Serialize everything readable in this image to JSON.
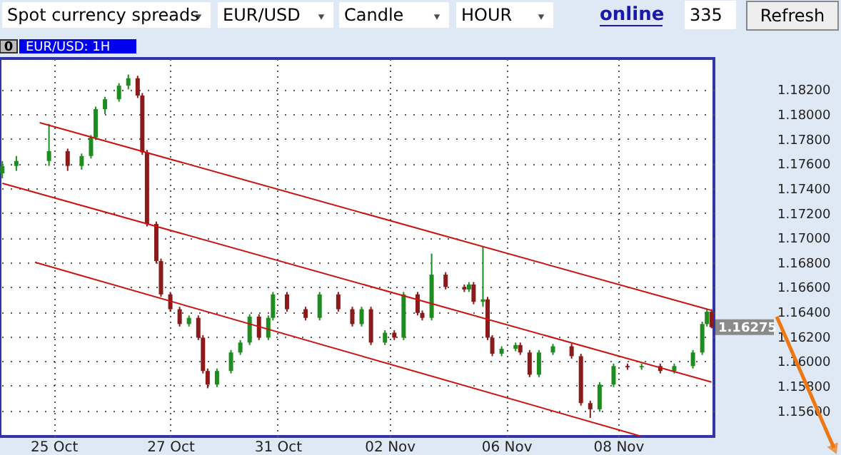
{
  "chart_data": {
    "type": "candlestick",
    "title": "EUR/USD: 1H",
    "categories": [
      null,
      null,
      null,
      null,
      null,
      null,
      null,
      null,
      null,
      null,
      null,
      "25 Oct",
      null,
      null,
      null,
      null,
      null,
      null,
      null,
      null,
      null,
      null,
      null,
      null,
      null,
      null,
      null,
      null,
      null,
      null,
      null,
      null,
      null,
      null,
      null,
      null,
      "27 Oct",
      null,
      null,
      null,
      null,
      null,
      null,
      null,
      null,
      null,
      null,
      null,
      null,
      null,
      null,
      null,
      null,
      null,
      null,
      null,
      null,
      null,
      null,
      "31 Oct",
      null,
      null,
      null,
      null,
      null,
      null,
      null,
      null,
      null,
      null,
      null,
      null,
      null,
      null,
      null,
      null,
      null,
      null,
      null,
      null,
      null,
      null,
      null,
      "02 Nov",
      null,
      null,
      null,
      null,
      null,
      null,
      null,
      null,
      null,
      null,
      null,
      null,
      null,
      null,
      null,
      null,
      null,
      null,
      null,
      null,
      null,
      null,
      null,
      null,
      "06 Nov",
      null,
      null,
      null,
      null,
      null,
      null,
      null,
      null,
      null,
      null,
      null,
      null,
      null,
      null,
      null,
      null,
      null,
      null,
      null,
      null,
      null,
      null,
      null,
      "08 Nov",
      null,
      null,
      null,
      null,
      null,
      null,
      null,
      null,
      null,
      null,
      null,
      null,
      null,
      null,
      null,
      null,
      null,
      null,
      null,
      null
    ],
    "ohlc": [
      [
        1.1752,
        1.1762,
        1.1748,
        1.1758
      ],
      null,
      null,
      [
        1.1758,
        1.1766,
        1.1754,
        1.1762
      ],
      null,
      null,
      null,
      null,
      null,
      null,
      [
        1.1762,
        1.1792,
        1.1758,
        1.177
      ],
      null,
      null,
      null,
      [
        1.177,
        1.1772,
        1.1754,
        1.1758
      ],
      null,
      null,
      [
        1.1758,
        1.1768,
        1.1755,
        1.1766
      ],
      null,
      [
        1.1766,
        1.1783,
        1.1764,
        1.1781
      ],
      [
        1.1781,
        1.1806,
        1.1779,
        1.1804
      ],
      null,
      [
        1.1804,
        1.1814,
        1.18,
        1.1812
      ],
      null,
      null,
      [
        1.1812,
        1.1825,
        1.181,
        1.1823
      ],
      null,
      [
        1.1823,
        1.1832,
        1.182,
        1.1829
      ],
      null,
      [
        1.1829,
        1.1831,
        1.1813,
        1.1815
      ],
      [
        1.1815,
        1.1817,
        1.1767,
        1.1769
      ],
      [
        1.1769,
        1.1771,
        1.1709,
        1.1711
      ],
      null,
      [
        1.1711,
        1.1713,
        1.1679,
        1.1681
      ],
      [
        1.1681,
        1.1683,
        1.1652,
        1.1654
      ],
      null,
      [
        1.1654,
        1.1656,
        1.164,
        1.1642
      ],
      null,
      [
        1.1642,
        1.1644,
        1.1628,
        1.163
      ],
      null,
      [
        1.163,
        1.1637,
        1.1628,
        1.1635
      ],
      null,
      [
        1.1635,
        1.1637,
        1.1617,
        1.1619
      ],
      [
        1.1619,
        1.1621,
        1.159,
        1.1592
      ],
      [
        1.1592,
        1.1594,
        1.1578,
        1.1581
      ],
      null,
      [
        1.1581,
        1.1594,
        1.1579,
        1.1592
      ],
      null,
      null,
      [
        1.1592,
        1.1609,
        1.159,
        1.1607
      ],
      null,
      [
        1.1607,
        1.1617,
        1.1605,
        1.1615
      ],
      null,
      [
        1.1615,
        1.1638,
        1.1613,
        1.1636
      ],
      null,
      [
        1.1636,
        1.1638,
        1.1617,
        1.1619
      ],
      null,
      [
        1.1619,
        1.1637,
        1.1617,
        1.1635
      ],
      [
        1.1635,
        1.1656,
        1.1633,
        1.1654
      ],
      null,
      null,
      [
        1.1654,
        1.1656,
        1.164,
        1.1642
      ],
      null,
      null,
      null,
      [
        1.1642,
        1.1644,
        1.1633,
        1.1635
      ],
      null,
      null,
      [
        1.1635,
        1.1656,
        1.1633,
        1.1654
      ],
      null,
      null,
      null,
      [
        1.1654,
        1.1656,
        1.164,
        1.1642
      ],
      null,
      null,
      [
        1.1642,
        1.1644,
        1.1628,
        1.163
      ],
      null,
      [
        1.163,
        1.1644,
        1.1628,
        1.1642
      ],
      null,
      [
        1.1642,
        1.1644,
        1.1613,
        1.1615
      ],
      null,
      null,
      [
        1.1615,
        1.1625,
        1.1613,
        1.1623
      ],
      null,
      [
        1.1623,
        1.1625,
        1.1617,
        1.1619
      ],
      null,
      [
        1.1619,
        1.1656,
        1.1617,
        1.1654
      ],
      null,
      null,
      [
        1.1654,
        1.1656,
        1.1637,
        1.1639
      ],
      [
        1.1639,
        1.1641,
        1.1633,
        1.1635
      ],
      null,
      [
        1.1635,
        1.1687,
        1.1633,
        1.167
      ],
      null,
      null,
      [
        1.167,
        1.1672,
        1.1658,
        1.166
      ],
      null,
      null,
      null,
      [
        1.166,
        1.1662,
        1.1656,
        1.1658
      ],
      [
        1.1658,
        1.1664,
        1.1656,
        1.1662
      ],
      [
        1.1662,
        1.1664,
        1.1646,
        1.1648
      ],
      null,
      [
        1.1648,
        1.1693,
        1.1644,
        1.165
      ],
      [
        1.165,
        1.1652,
        1.1617,
        1.1619
      ],
      [
        1.1619,
        1.1621,
        1.1604,
        1.1606
      ],
      null,
      [
        1.1606,
        1.1612,
        1.1604,
        1.161
      ],
      null,
      null,
      [
        1.161,
        1.1615,
        1.1608,
        1.1613
      ],
      [
        1.1613,
        1.1615,
        1.1605,
        1.1607
      ],
      null,
      [
        1.1607,
        1.1609,
        1.1587,
        1.1589
      ],
      null,
      [
        1.1589,
        1.1609,
        1.1587,
        1.1607
      ],
      null,
      null,
      [
        1.1607,
        1.1614,
        1.1605,
        1.1612
      ],
      null,
      null,
      null,
      [
        1.1612,
        1.1614,
        1.1602,
        1.1604
      ],
      null,
      [
        1.1604,
        1.1606,
        1.1564,
        1.1566
      ],
      null,
      [
        1.1566,
        1.1568,
        1.1554,
        1.1561
      ],
      null,
      [
        1.1561,
        1.1583,
        1.1559,
        1.1581
      ],
      null,
      null,
      [
        1.1581,
        1.1598,
        1.1579,
        1.1596
      ],
      null,
      null,
      [
        1.1596,
        1.1598,
        1.1593,
        1.1595
      ],
      null,
      null,
      [
        1.1595,
        1.1598,
        1.1593,
        1.1596
      ],
      null,
      null,
      null,
      [
        1.1596,
        1.1598,
        1.159,
        1.1592
      ],
      null,
      null,
      [
        1.1592,
        1.1598,
        1.159,
        1.1596
      ],
      null,
      null,
      null,
      [
        1.1596,
        1.1609,
        1.1594,
        1.1607
      ],
      null,
      [
        1.1607,
        1.1632,
        1.1605,
        1.163
      ],
      [
        1.163,
        1.1642,
        1.1628,
        1.164
      ],
      [
        1.164,
        1.1642,
        1.16265,
        1.16275
      ]
    ],
    "colors": [
      "#1e8c1e",
      null,
      null,
      "#1e8c1e",
      null,
      null,
      null,
      null,
      null,
      null,
      "#1e8c1e",
      null,
      null,
      null,
      "#8b1a1a",
      null,
      null,
      "#1e8c1e",
      null,
      "#1e8c1e",
      "#1e8c1e",
      null,
      "#1e8c1e",
      null,
      null,
      "#1e8c1e",
      null,
      "#1e8c1e",
      null,
      "#8b1a1a",
      "#8b1a1a",
      "#8b1a1a",
      null,
      "#8b1a1a",
      "#8b1a1a",
      null,
      "#8b1a1a",
      null,
      "#8b1a1a",
      null,
      "#1e8c1e",
      null,
      "#8b1a1a",
      "#8b1a1a",
      "#8b1a1a",
      null,
      "#1e8c1e",
      null,
      null,
      "#1e8c1e",
      null,
      "#1e8c1e",
      null,
      "#1e8c1e",
      null,
      "#8b1a1a",
      null,
      "#1e8c1e",
      "#1e8c1e",
      null,
      null,
      "#8b1a1a",
      null,
      null,
      null,
      "#8b1a1a",
      null,
      null,
      "#1e8c1e",
      null,
      null,
      null,
      "#8b1a1a",
      null,
      null,
      "#8b1a1a",
      null,
      "#1e8c1e",
      null,
      "#8b1a1a",
      null,
      null,
      "#1e8c1e",
      null,
      "#8b1a1a",
      null,
      "#1e8c1e",
      null,
      null,
      "#8b1a1a",
      "#8b1a1a",
      null,
      "#1e8c1e",
      null,
      null,
      "#8b1a1a",
      null,
      null,
      null,
      "#8b1a1a",
      "#1e8c1e",
      "#8b1a1a",
      null,
      "#1e8c1e",
      "#8b1a1a",
      "#8b1a1a",
      null,
      "#1e8c1e",
      null,
      null,
      "#1e8c1e",
      "#8b1a1a",
      null,
      "#8b1a1a",
      null,
      "#1e8c1e",
      null,
      null,
      "#1e8c1e",
      null,
      null,
      null,
      "#8b1a1a",
      null,
      "#8b1a1a",
      null,
      "#8b1a1a",
      null,
      "#1e8c1e",
      null,
      null,
      "#1e8c1e",
      null,
      null,
      "#8b1a1a",
      null,
      null,
      "#1e8c1e",
      null,
      null,
      null,
      "#8b1a1a",
      null,
      null,
      "#1e8c1e",
      null,
      null,
      null,
      "#1e8c1e",
      null,
      "#1e8c1e",
      "#1e8c1e",
      "#8b1a1a"
    ],
    "series": [
      {
        "type": "line",
        "color": "#cc1111",
        "values": [
          null,
          null,
          null,
          null,
          null,
          null,
          null,
          null,
          1.1793,
          null,
          null,
          null,
          null,
          null,
          null,
          null,
          null,
          null,
          null,
          null,
          null,
          null,
          null,
          null,
          null,
          null,
          null,
          null,
          null,
          null,
          null,
          null,
          null,
          null,
          null,
          null,
          null,
          null,
          null,
          null,
          null,
          null,
          null,
          null,
          null,
          null,
          null,
          null,
          null,
          null,
          null,
          null,
          null,
          null,
          null,
          null,
          null,
          null,
          null,
          null,
          null,
          null,
          null,
          null,
          null,
          null,
          null,
          null,
          null,
          null,
          null,
          null,
          null,
          null,
          null,
          null,
          null,
          null,
          null,
          null,
          null,
          null,
          null,
          null,
          null,
          null,
          null,
          null,
          null,
          null,
          null,
          null,
          null,
          null,
          null,
          null,
          null,
          null,
          null,
          null,
          null,
          null,
          null,
          null,
          null,
          null,
          null,
          null,
          null,
          null,
          null,
          null,
          null,
          null,
          null,
          null,
          null,
          null,
          null,
          null,
          null,
          null,
          null,
          null,
          null,
          null,
          null,
          null,
          null,
          null,
          null,
          null,
          null,
          null,
          null,
          null,
          null,
          null,
          null,
          null,
          null,
          null,
          null,
          null,
          null,
          null,
          null,
          null,
          null,
          null,
          null,
          null,
          1.1641
        ]
      },
      {
        "type": "line",
        "color": "#cc1111",
        "values": [
          1.1744,
          null,
          null,
          null,
          null,
          null,
          null,
          null,
          null,
          null,
          null,
          null,
          null,
          null,
          null,
          null,
          null,
          null,
          null,
          null,
          null,
          null,
          null,
          null,
          null,
          null,
          null,
          null,
          null,
          null,
          null,
          null,
          null,
          null,
          null,
          null,
          null,
          null,
          null,
          null,
          null,
          null,
          null,
          null,
          null,
          null,
          null,
          null,
          null,
          null,
          null,
          null,
          null,
          null,
          null,
          null,
          null,
          null,
          null,
          null,
          null,
          null,
          null,
          null,
          null,
          null,
          null,
          null,
          null,
          null,
          null,
          null,
          null,
          null,
          null,
          null,
          null,
          null,
          null,
          null,
          null,
          null,
          null,
          null,
          null,
          null,
          null,
          null,
          null,
          null,
          null,
          null,
          null,
          null,
          null,
          null,
          null,
          null,
          null,
          null,
          null,
          null,
          null,
          null,
          null,
          null,
          null,
          null,
          null,
          null,
          null,
          null,
          null,
          null,
          null,
          null,
          null,
          null,
          null,
          null,
          null,
          null,
          null,
          null,
          null,
          null,
          null,
          null,
          null,
          null,
          null,
          null,
          null,
          null,
          null,
          null,
          null,
          null,
          null,
          null,
          null,
          null,
          null,
          null,
          null,
          null,
          null,
          null,
          null,
          null,
          null,
          null,
          1.1583
        ]
      },
      {
        "type": "line",
        "color": "#cc1111",
        "values": [
          null,
          null,
          null,
          null,
          null,
          null,
          null,
          1.168,
          null,
          null,
          null,
          null,
          null,
          null,
          null,
          null,
          null,
          null,
          null,
          null,
          null,
          null,
          null,
          null,
          null,
          null,
          null,
          null,
          null,
          null,
          null,
          null,
          null,
          null,
          null,
          null,
          null,
          null,
          null,
          null,
          null,
          null,
          null,
          null,
          null,
          null,
          null,
          null,
          null,
          null,
          null,
          null,
          null,
          null,
          null,
          null,
          null,
          null,
          null,
          null,
          null,
          null,
          null,
          null,
          null,
          null,
          null,
          null,
          null,
          null,
          null,
          null,
          null,
          null,
          null,
          null,
          null,
          null,
          null,
          null,
          null,
          null,
          null,
          null,
          null,
          null,
          null,
          null,
          null,
          null,
          null,
          null,
          null,
          null,
          null,
          null,
          null,
          null,
          null,
          null,
          null,
          null,
          null,
          null,
          null,
          null,
          null,
          null,
          null,
          null,
          null,
          null,
          null,
          null,
          null,
          null,
          null,
          null,
          null,
          null,
          null,
          null,
          null,
          null,
          null,
          null,
          null,
          null,
          null,
          null,
          null,
          null,
          null,
          null,
          null,
          null,
          null,
          1.1539,
          null,
          null,
          null,
          null,
          null,
          null,
          null,
          null,
          null,
          null,
          null,
          null,
          null,
          null,
          null
        ]
      }
    ],
    "ylim": [
      1.1539,
      1.1845
    ],
    "yticks": [
      {
        "value": 1.156,
        "label": "1.15600"
      },
      {
        "value": 1.158,
        "label": "1.15800"
      },
      {
        "value": 1.16,
        "label": "1.16000"
      },
      {
        "value": 1.162,
        "label": "1.16200"
      },
      {
        "value": 1.164,
        "label": "1.16400"
      },
      {
        "value": 1.166,
        "label": "1.16600"
      },
      {
        "value": 1.168,
        "label": "1.16800"
      },
      {
        "value": 1.17,
        "label": "1.17000"
      },
      {
        "value": 1.172,
        "label": "1.17200"
      },
      {
        "value": 1.174,
        "label": "1.17400"
      },
      {
        "value": 1.176,
        "label": "1.17600"
      },
      {
        "value": 1.178,
        "label": "1.17800"
      },
      {
        "value": 1.18,
        "label": "1.18000"
      },
      {
        "value": 1.182,
        "label": "1.18200"
      }
    ],
    "grid": true,
    "annotations": [
      "Spot currency spreads",
      "EUR/USD",
      "Candle",
      "HOUR",
      "online",
      "335",
      "Refresh",
      "0",
      "1.16275"
    ]
  }
}
